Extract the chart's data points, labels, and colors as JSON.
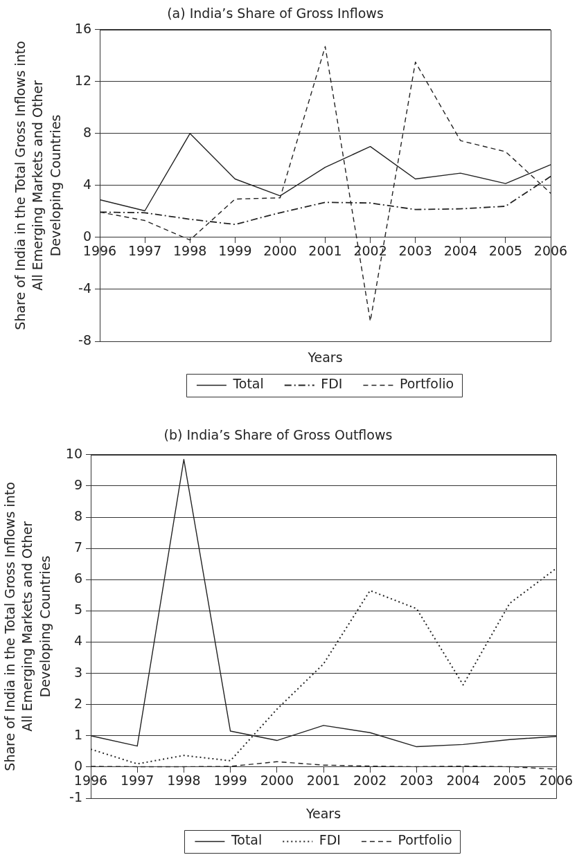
{
  "chart_data": [
    {
      "type": "line",
      "title": "(a) India’s Share of Gross Inflows",
      "xlabel": "Years",
      "ylabel": "Share of India in the Total Gross Inflows into\nAll Emerging Markets and Other\nDeveloping Countries",
      "categories": [
        "1996",
        "1997",
        "1998",
        "1999",
        "2000",
        "2001",
        "2002",
        "2003",
        "2004",
        "2005",
        "2006"
      ],
      "series": [
        {
          "name": "Total",
          "color": "#222222",
          "line_style": "solid",
          "values": [
            2.9,
            2.05,
            8.0,
            4.5,
            3.2,
            5.4,
            7.0,
            4.5,
            4.95,
            4.15,
            5.6
          ]
        },
        {
          "name": "FDI",
          "color": "#222222",
          "line_style": "dashdot",
          "values": [
            1.95,
            1.9,
            1.4,
            1.0,
            1.9,
            2.7,
            2.65,
            2.15,
            2.2,
            2.4,
            4.7
          ]
        },
        {
          "name": "Portfolio",
          "color": "#222222",
          "line_style": "dashed",
          "values": [
            1.95,
            1.3,
            -0.2,
            2.95,
            3.05,
            14.7,
            -6.45,
            13.5,
            7.45,
            6.6,
            3.4
          ]
        }
      ],
      "ylim": [
        -8,
        16
      ],
      "yticks": [
        -8,
        -4,
        0,
        4,
        8,
        12,
        16
      ],
      "grid": "y",
      "legend": "bottom"
    },
    {
      "type": "line",
      "title": "(b) India’s Share of Gross Outflows",
      "xlabel": "Years",
      "ylabel": "Share of India in the Total Gross Inflows into\nAll Emerging Markets and Other\nDeveloping Countries",
      "categories": [
        "1996",
        "1997",
        "1998",
        "1999",
        "2000",
        "2001",
        "2002",
        "2003",
        "2004",
        "2005",
        "2006"
      ],
      "series": [
        {
          "name": "Total",
          "color": "#222222",
          "line_style": "solid",
          "values": [
            1.0,
            0.67,
            9.85,
            1.15,
            0.85,
            1.33,
            1.1,
            0.65,
            0.72,
            0.88,
            0.98
          ]
        },
        {
          "name": "FDI",
          "color": "#222222",
          "line_style": "dotted",
          "values": [
            0.57,
            0.1,
            0.37,
            0.2,
            1.85,
            3.3,
            5.65,
            5.07,
            2.63,
            5.24,
            6.36
          ]
        },
        {
          "name": "Portfolio",
          "color": "#222222",
          "line_style": "dashed",
          "values": [
            0.02,
            0.01,
            0.01,
            0.02,
            0.17,
            0.06,
            0.03,
            0.01,
            0.03,
            0.01,
            -0.07
          ]
        }
      ],
      "ylim": [
        -1,
        10
      ],
      "yticks": [
        -1,
        0,
        1,
        2,
        3,
        4,
        5,
        6,
        7,
        8,
        9,
        10
      ],
      "grid": "y",
      "legend": "bottom"
    }
  ]
}
